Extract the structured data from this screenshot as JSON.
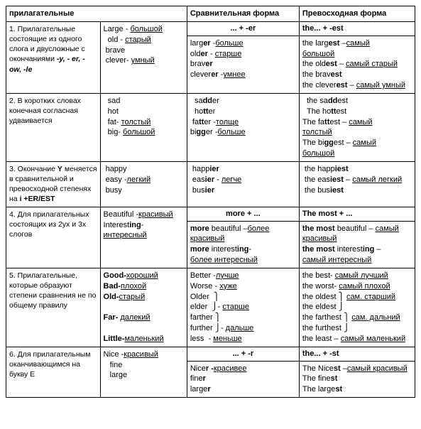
{
  "headers": {
    "c0": "прилагательные",
    "c2": "Сравнительная форма",
    "c3": "Превосходная форма"
  },
  "patterns": {
    "r1_comp": "... + -er",
    "r1_sup": "the... + -est",
    "r4_comp": "more + ...",
    "r4_sup": "The most + ...",
    "r6_comp": "... + -r",
    "r6_sup": "the... + -st"
  },
  "rows": {
    "r1": {
      "rule": "1. Прилагательные состоящие из одного слога и двусложные с окончаниями ",
      "rule_suffix": "-y, - er, - ow, -le",
      "base": "Large - <u>большой</u><br>  old - <u>старый</u><br> brave<br> clever- <u>умный</u>",
      "comp": "larg<b>er</b> -<u>больше</u><br>old<b>er</b> - <u>старше</u><br>brav<b>er</b><br>clever<b>er</b> -<u>умнее</u>",
      "sup": "the larg<b>est</b> –<u>самый</u><br><u>большой</u><br>the old<b>est</b> – <u>самый старый</u><br>the brav<b>est</b><br>the clever<b>est</b> – <u>самый умный</u>"
    },
    "r2": {
      "rule": "2. В коротких словах конечная согласная удваивается",
      "base": "  sad<br>  hot<br>  fat- <u>толстый</u><br>  big- <u>большой</u>",
      "comp": "  sa<b>dd</b>er<br>  ho<b>tt</b>er<br> fa<b>tt</b>er -<u>толще</u><br>bi<b>gg</b>er -<u>больше</u>",
      "sup": "  the sa<b>dd</b>est<br>  The ho<b>tt</b>est<br>The fa<b>tt</b>est – <u>самый</u><br><u>толстый</u><br>The bi<b>gg</b>est – <u>самый</u><br><u>большой</u>"
    },
    "r3": {
      "rule": "3. Окончание <b>Y</b> меняется в сравнительной и превосходной степенях на <b>i +ER/EST</b>",
      "base": " happy<br> easy -<u>легкий</u><br> busy",
      "comp": " happ<b>ier</b><br> eas<b>ier</b> - <u>легче</u><br> bus<b>ier</b>",
      "sup": " the happ<b>iest</b><br> the eas<b>iest</b> – <u>самый легкий</u><br> the bus<b>iest</b>"
    },
    "r4": {
      "rule": " 4. Для прилагательных состоящих из 2ух и 3х слогов",
      "base": "Beautiful -<u>красивый</u><br>Interest<b>ing</b>-<br><u>интересный</u>",
      "comp": "<b>more</b> beautiful –<u>более</u><br><u>красивый</u><br><b>more</b> interest<b>ing</b>-<br><u>более интересный</u>",
      "sup": "<b>the most</b> beautiful – <u>самый</u><br><u>красивый</u><br><b>the most</b> interest<b>ing</b> –<br><u>самый интересный</u>"
    },
    "r5": {
      "rule": "5. Прилагательные, которые образуют степени сравнения не по общему правилу",
      "base": "<b>Good-</b><u>хороший</u><br><b>Bad-</b><u>плохой</u><br><b>Old-</b><u>старый</u><br><br><b>Far-</b> <u>далекий</u><br><br><b>Little-</b><u>маленький</u>",
      "comp": "Better -<u>лучше</u><br>Worse - <u>хуже</u><br>Older  ⎫<br>elder  ⎭- <u>старше</u><br>farther ⎫<br>further ⎭- <u>дальше</u><br>less  - <u>меньше</u>",
      "sup": "the best- <u>самый лучший</u><br>the worst- <u>самый плохой</u><br>the oldest ⎫ <u>сам. старший</u><br>the eldest ⎭<br>the farthest ⎫ <u>сам. дальний</u><br>the furthest ⎭<br>the least – <u>самый маленький</u>"
    },
    "r6": {
      "rule": "6. Для прилагательным оканчивающимся на букву Е",
      "base": "Nice -<u>красивый</u><br>   fine<br>   large",
      "comp": "Nice<b>r -</b><u>красивее</u><br>fine<b>r</b><br>large<b>r</b>",
      "sup": "The Nice<b>st</b> –<u>самый красивый</u><br>The fine<b>st</b><br>The large<b>st</b>"
    }
  }
}
